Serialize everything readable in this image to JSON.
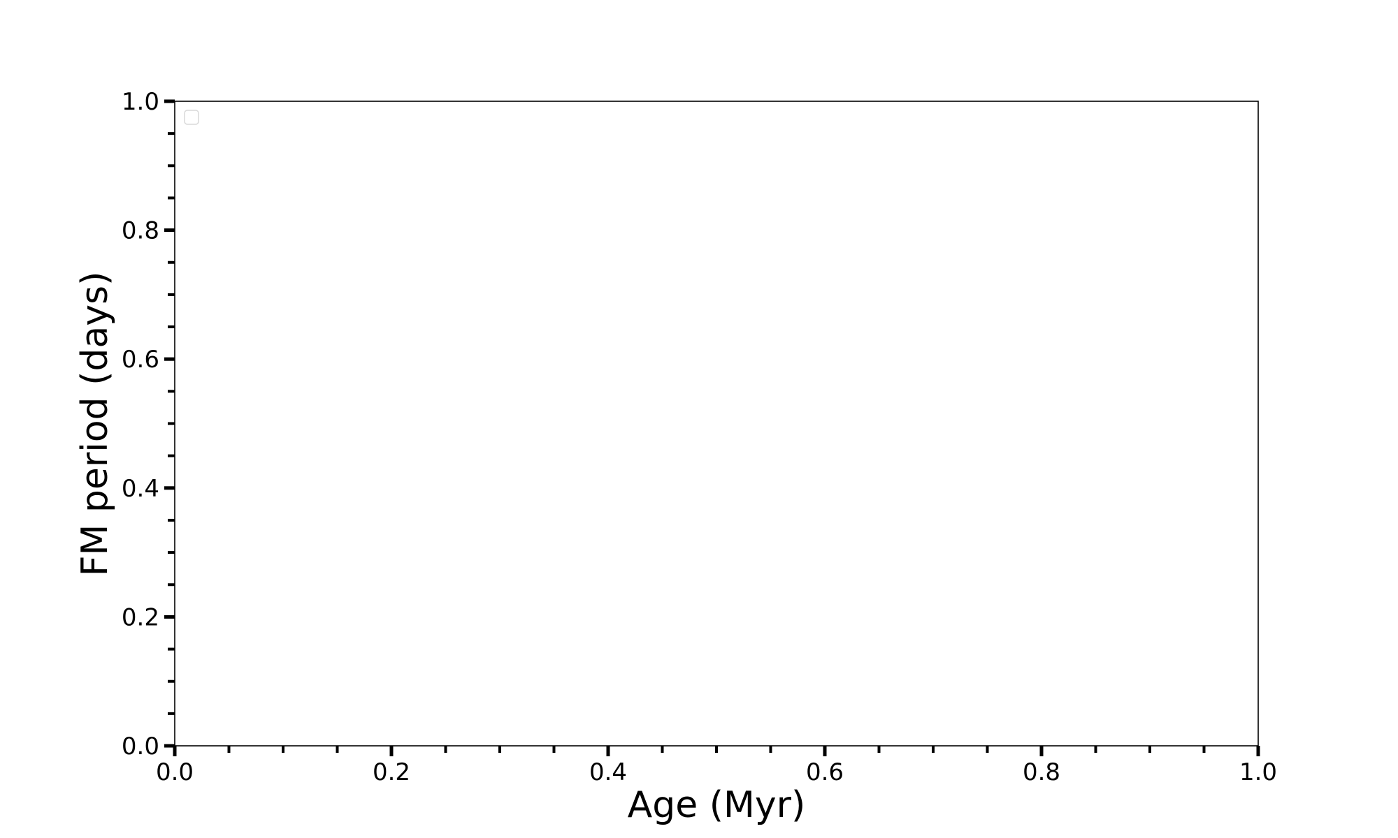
{
  "chart_data": {
    "type": "scatter",
    "title": "",
    "xlabel": "Age (Myr)",
    "ylabel": "FM period (days)",
    "xlim": [
      0.0,
      1.0
    ],
    "ylim": [
      0.0,
      1.0
    ],
    "x_ticks": [
      "0.0",
      "0.2",
      "0.4",
      "0.6",
      "0.8",
      "1.0"
    ],
    "y_ticks": [
      "0.0",
      "0.2",
      "0.4",
      "0.6",
      "0.8",
      "1.0"
    ],
    "x_tick_values": [
      0.0,
      0.2,
      0.4,
      0.6,
      0.8,
      1.0
    ],
    "y_tick_values": [
      0.0,
      0.2,
      0.4,
      0.6,
      0.8,
      1.0
    ],
    "minor_tick_step": 0.05,
    "grid": false,
    "legend": {
      "placement": "upper-left",
      "entries": []
    },
    "series": [],
    "colors": {
      "axes": "#000000",
      "legend_border": "#d9d9d9"
    }
  }
}
